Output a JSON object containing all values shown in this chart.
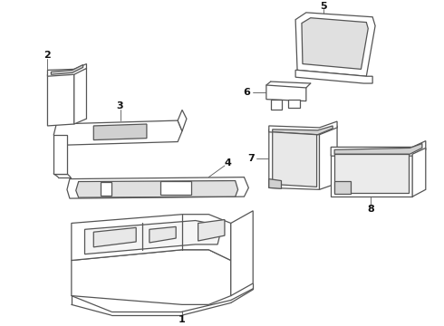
{
  "bg_color": "#ffffff",
  "line_color": "#555555",
  "fig_width": 4.9,
  "fig_height": 3.6,
  "dpi": 100
}
